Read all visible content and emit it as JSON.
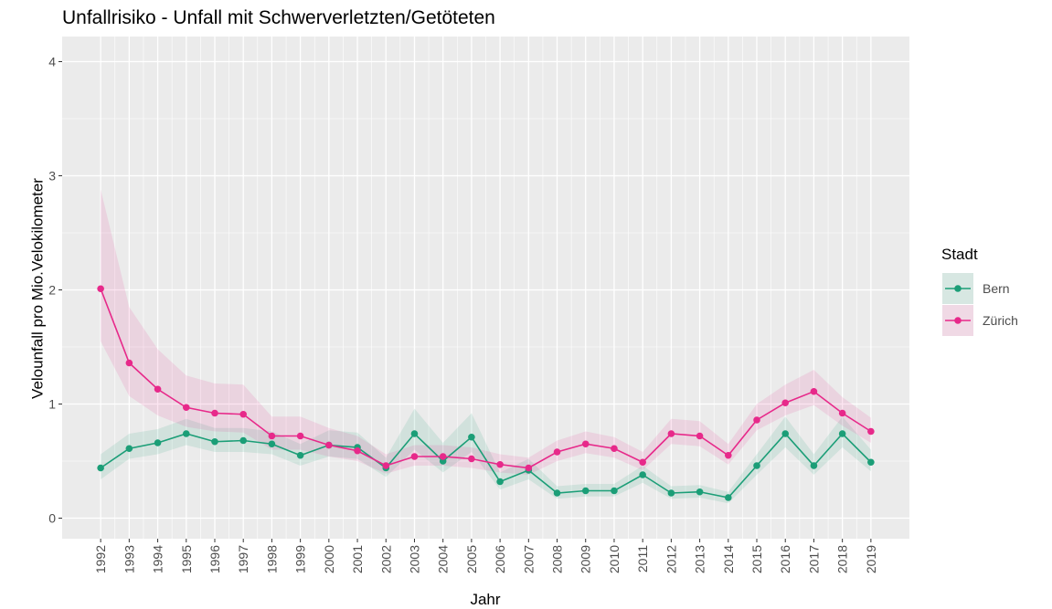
{
  "chart_data": {
    "type": "line",
    "title": "Unfallrisiko - Unfall mit Schwerverletzten/Getöteten",
    "x_label": "Jahr",
    "y_label": "Velounfall pro Mio.Velokilometer",
    "legend_title": "Stadt",
    "legend": "right",
    "grid": true,
    "x": [
      1992,
      1993,
      1994,
      1995,
      1996,
      1997,
      1998,
      1999,
      2000,
      2001,
      2002,
      2003,
      2004,
      2005,
      2006,
      2007,
      2008,
      2009,
      2010,
      2011,
      2012,
      2013,
      2014,
      2015,
      2016,
      2017,
      2018,
      2019
    ],
    "xlim": [
      1990.65,
      2020.35
    ],
    "xticks": [
      1992,
      1993,
      1994,
      1995,
      1996,
      1997,
      1998,
      1999,
      2000,
      2001,
      2002,
      2003,
      2004,
      2005,
      2006,
      2007,
      2008,
      2009,
      2010,
      2011,
      2012,
      2013,
      2014,
      2015,
      2016,
      2017,
      2018,
      2019
    ],
    "ylim": [
      -0.18,
      4.22
    ],
    "yticks": [
      0,
      1,
      2,
      3,
      4
    ],
    "series": [
      {
        "name": "Bern",
        "color": "#1b9e77",
        "values": [
          0.44,
          0.61,
          0.66,
          0.74,
          0.67,
          0.68,
          0.65,
          0.55,
          0.64,
          0.62,
          0.44,
          0.74,
          0.5,
          0.71,
          0.32,
          0.42,
          0.22,
          0.24,
          0.24,
          0.38,
          0.22,
          0.23,
          0.18,
          0.46,
          0.74,
          0.46,
          0.74,
          0.49
        ],
        "lower": [
          0.34,
          0.52,
          0.56,
          0.64,
          0.58,
          0.58,
          0.56,
          0.46,
          0.54,
          0.52,
          0.36,
          0.6,
          0.4,
          0.58,
          0.25,
          0.34,
          0.17,
          0.19,
          0.19,
          0.31,
          0.17,
          0.18,
          0.13,
          0.38,
          0.62,
          0.38,
          0.62,
          0.41
        ],
        "upper": [
          0.56,
          0.74,
          0.78,
          0.87,
          0.79,
          0.79,
          0.76,
          0.65,
          0.77,
          0.75,
          0.53,
          0.96,
          0.66,
          0.92,
          0.4,
          0.52,
          0.28,
          0.3,
          0.3,
          0.46,
          0.28,
          0.29,
          0.23,
          0.56,
          0.89,
          0.56,
          0.89,
          0.6
        ]
      },
      {
        "name": "Zürich",
        "color": "#e7298a",
        "values": [
          2.01,
          1.36,
          1.13,
          0.97,
          0.92,
          0.91,
          0.72,
          0.72,
          0.64,
          0.59,
          0.46,
          0.54,
          0.54,
          0.52,
          0.47,
          0.44,
          0.58,
          0.65,
          0.61,
          0.49,
          0.74,
          0.72,
          0.55,
          0.86,
          1.01,
          1.11,
          0.92,
          0.76
        ],
        "lower": [
          1.55,
          1.07,
          0.9,
          0.8,
          0.76,
          0.75,
          0.6,
          0.6,
          0.54,
          0.5,
          0.39,
          0.46,
          0.46,
          0.44,
          0.4,
          0.38,
          0.5,
          0.57,
          0.53,
          0.42,
          0.65,
          0.63,
          0.47,
          0.77,
          0.9,
          0.99,
          0.81,
          0.66
        ],
        "upper": [
          2.88,
          1.85,
          1.48,
          1.25,
          1.18,
          1.17,
          0.89,
          0.89,
          0.79,
          0.72,
          0.56,
          0.64,
          0.64,
          0.62,
          0.56,
          0.53,
          0.68,
          0.76,
          0.71,
          0.58,
          0.87,
          0.85,
          0.65,
          1.0,
          1.17,
          1.3,
          1.06,
          0.88
        ]
      }
    ]
  }
}
